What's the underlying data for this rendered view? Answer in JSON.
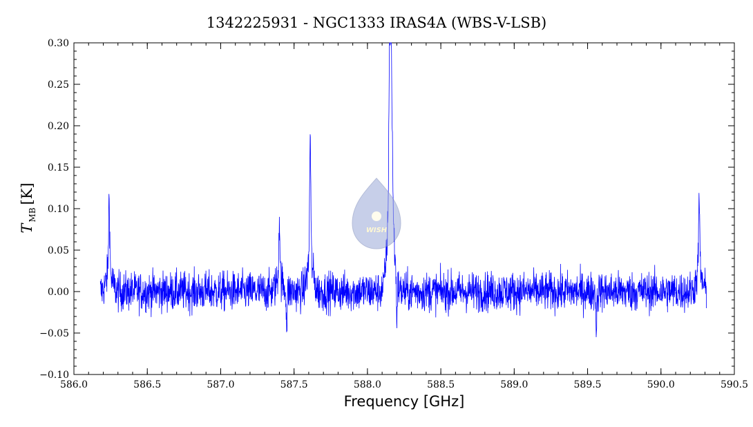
{
  "chart_data": {
    "type": "line",
    "title": "1342225931 - NGC1333 IRAS4A (WBS-V-LSB)",
    "xlabel": "Frequency [GHz]",
    "ylabel": {
      "symbol": "T",
      "subscript": "MB",
      "unit": "[K]"
    },
    "xlim": [
      586.0,
      590.5
    ],
    "ylim": [
      -0.1,
      0.3
    ],
    "x_ticks": [
      "586.0",
      "586.5",
      "587.0",
      "587.5",
      "588.0",
      "588.5",
      "589.0",
      "589.5",
      "590.0",
      "590.5"
    ],
    "y_ticks": [
      "−0.10",
      "−0.05",
      "0.00",
      "0.05",
      "0.10",
      "0.15",
      "0.20",
      "0.25",
      "0.30"
    ],
    "grid": false,
    "series": [
      {
        "color": "#0000ff",
        "x_range": [
          586.18,
          590.31
        ],
        "noise_rms": 0.012,
        "peaks": [
          {
            "x": 586.24,
            "y": 0.09
          },
          {
            "x": 587.4,
            "y": 0.07
          },
          {
            "x": 587.61,
            "y": 0.15
          },
          {
            "x": 588.15,
            "y": 0.185
          },
          {
            "x": 588.16,
            "y": 0.248
          },
          {
            "x": 588.17,
            "y": 0.07
          },
          {
            "x": 590.26,
            "y": 0.09
          }
        ],
        "dips": [
          {
            "x": 588.2,
            "y": -0.045
          },
          {
            "x": 589.56,
            "y": -0.048
          },
          {
            "x": 587.45,
            "y": -0.045
          }
        ]
      }
    ],
    "colors": {
      "series": "#0000ff",
      "axes": "#000000"
    }
  },
  "watermark": {
    "text": "WISH",
    "icon": "droplet-logo-icon"
  }
}
